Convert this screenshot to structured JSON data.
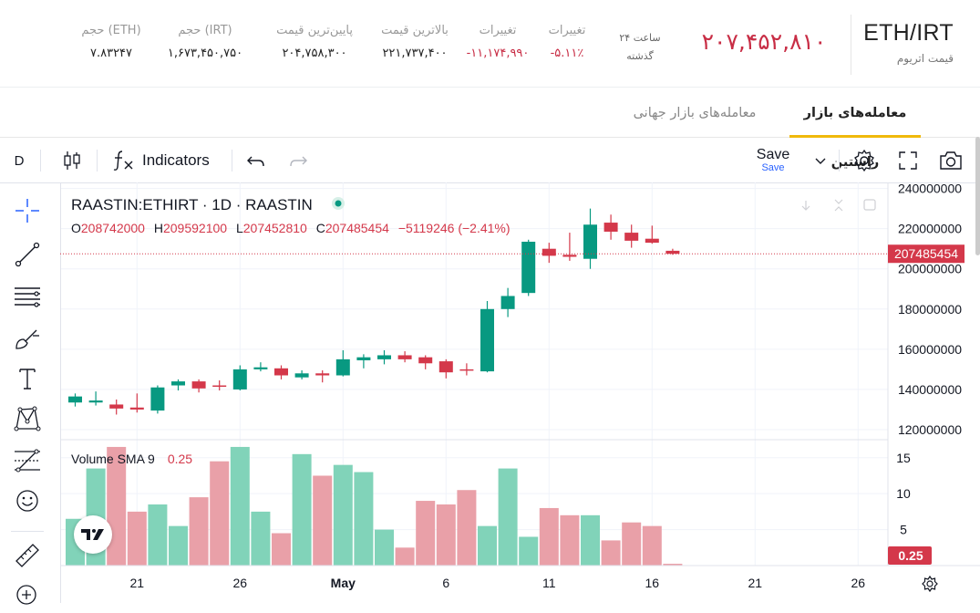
{
  "header": {
    "symbol": "ETH/IRT",
    "symbol_sub": "قیمت اتریوم",
    "last_price": "۲۰۷,۴۵۲,۸۱۰",
    "period_line1": "۲۴ ساعت",
    "period_line2": "گذشته",
    "stats": [
      {
        "label": "تغییرات",
        "value": "-۵.۱۱٪",
        "red": true
      },
      {
        "label": "تغییرات",
        "value": "-۱۱,۱۷۴,۹۹۰",
        "red": true
      },
      {
        "label": "بالاترین قیمت",
        "value": "۲۲۱,۷۳۷,۴۰۰",
        "red": false
      },
      {
        "label": "پایین‌ترین قیمت",
        "value": "۲۰۴,۷۵۸,۳۰۰",
        "red": false
      },
      {
        "label": "حجم (IRT)",
        "value": "۱,۶۷۳,۴۵۰,۷۵۰",
        "red": false
      },
      {
        "label": "حجم (ETH)",
        "value": "۷.۸۳۲۴۷",
        "red": false
      }
    ]
  },
  "tabs": [
    {
      "label": "معامله‌های بازار راستین",
      "active": true
    },
    {
      "label": "معامله‌های بازار جهانی",
      "active": false
    }
  ],
  "toolbar": {
    "interval": "D",
    "indicators_label": "Indicators",
    "save_label": "Save",
    "save_sub": "Save"
  },
  "legend": {
    "title": "RAASTIN:ETHIRT · 1D · RAASTIN",
    "o_label": "O",
    "o_value": "208742000",
    "h_label": "H",
    "h_value": "209592100",
    "l_label": "L",
    "l_value": "207452810",
    "c_label": "C",
    "c_value": "207485454",
    "change": "−5119246 (−2.41%)"
  },
  "volume_legend": {
    "label": "Volume SMA 9",
    "value": "0.25"
  },
  "colors": {
    "up": "#089981",
    "down": "#d4384a",
    "vol_up": "#81d3b9",
    "vol_down": "#e9a0a8",
    "brand": "#f0b90b"
  },
  "chart_data": {
    "type": "candlestick",
    "price_axis": {
      "ticks": [
        "240000000",
        "220000000",
        "200000000",
        "180000000",
        "160000000",
        "140000000",
        "120000000"
      ],
      "ylim": [
        115000000,
        243000000
      ]
    },
    "current_price_label": "207485454",
    "volume_axis": {
      "ticks": [
        "15",
        "10",
        "5"
      ],
      "ylim": [
        0,
        17
      ],
      "current_label": "0.25"
    },
    "x_ticks": [
      {
        "label": "21",
        "index": 3
      },
      {
        "label": "26",
        "index": 8
      },
      {
        "label": "May",
        "index": 13
      },
      {
        "label": "6",
        "index": 18
      },
      {
        "label": "11",
        "index": 23
      },
      {
        "label": "16",
        "index": 28
      },
      {
        "label": "21",
        "index": 33
      },
      {
        "label": "26",
        "index": 38
      }
    ],
    "candles": [
      {
        "o": 133500000,
        "h": 138000000,
        "l": 131500000,
        "c": 136500000,
        "v": 6.5
      },
      {
        "o": 133500000,
        "h": 139000000,
        "l": 132000000,
        "c": 134500000,
        "v": 13.5
      },
      {
        "o": 132500000,
        "h": 135000000,
        "l": 127500000,
        "c": 130500000,
        "v": 16.5
      },
      {
        "o": 131000000,
        "h": 138000000,
        "l": 128500000,
        "c": 130000000,
        "v": 7.5
      },
      {
        "o": 129500000,
        "h": 142000000,
        "l": 128000000,
        "c": 141000000,
        "v": 8.5
      },
      {
        "o": 142000000,
        "h": 145000000,
        "l": 139500000,
        "c": 144000000,
        "v": 5.5
      },
      {
        "o": 144000000,
        "h": 145000000,
        "l": 138500000,
        "c": 140500000,
        "v": 9.5
      },
      {
        "o": 142000000,
        "h": 144500000,
        "l": 139500000,
        "c": 141500000,
        "v": 14.5
      },
      {
        "o": 140000000,
        "h": 152000000,
        "l": 139500000,
        "c": 150000000,
        "v": 16.5
      },
      {
        "o": 150000000,
        "h": 153500000,
        "l": 149000000,
        "c": 151000000,
        "v": 7.5
      },
      {
        "o": 150500000,
        "h": 152000000,
        "l": 145000000,
        "c": 147000000,
        "v": 4.5
      },
      {
        "o": 146000000,
        "h": 149500000,
        "l": 145000000,
        "c": 148000000,
        "v": 15.5
      },
      {
        "o": 148000000,
        "h": 149500000,
        "l": 143500000,
        "c": 147000000,
        "v": 12.5
      },
      {
        "o": 147000000,
        "h": 159500000,
        "l": 146500000,
        "c": 155000000,
        "v": 14.0
      },
      {
        "o": 154500000,
        "h": 157500000,
        "l": 150500000,
        "c": 156000000,
        "v": 13.0
      },
      {
        "o": 155000000,
        "h": 159500000,
        "l": 152500000,
        "c": 157000000,
        "v": 5.0
      },
      {
        "o": 157000000,
        "h": 159000000,
        "l": 153500000,
        "c": 155000000,
        "v": 2.5
      },
      {
        "o": 156000000,
        "h": 157000000,
        "l": 150000000,
        "c": 153000000,
        "v": 9.0
      },
      {
        "o": 154000000,
        "h": 155000000,
        "l": 145500000,
        "c": 148500000,
        "v": 8.5
      },
      {
        "o": 150000000,
        "h": 153000000,
        "l": 147000000,
        "c": 149500000,
        "v": 10.5
      },
      {
        "o": 149000000,
        "h": 184000000,
        "l": 148500000,
        "c": 180000000,
        "v": 5.5
      },
      {
        "o": 180000000,
        "h": 190500000,
        "l": 176000000,
        "c": 186500000,
        "v": 13.5
      },
      {
        "o": 188000000,
        "h": 214500000,
        "l": 186500000,
        "c": 213500000,
        "v": 4.0
      },
      {
        "o": 210000000,
        "h": 213000000,
        "l": 203000000,
        "c": 206500000,
        "v": 8.0
      },
      {
        "o": 207000000,
        "h": 218000000,
        "l": 204000000,
        "c": 206000000,
        "v": 7.0
      },
      {
        "o": 205000000,
        "h": 230000000,
        "l": 200000000,
        "c": 222000000,
        "v": 7.0
      },
      {
        "o": 223000000,
        "h": 227000000,
        "l": 214500000,
        "c": 218500000,
        "v": 3.5
      },
      {
        "o": 218000000,
        "h": 222000000,
        "l": 210500000,
        "c": 214000000,
        "v": 6.0
      },
      {
        "o": 215000000,
        "h": 221500000,
        "l": 212500000,
        "c": 213000000,
        "v": 5.5
      },
      {
        "o": 209000000,
        "h": 210000000,
        "l": 207000000,
        "c": 207485454,
        "v": 0.25
      }
    ]
  }
}
